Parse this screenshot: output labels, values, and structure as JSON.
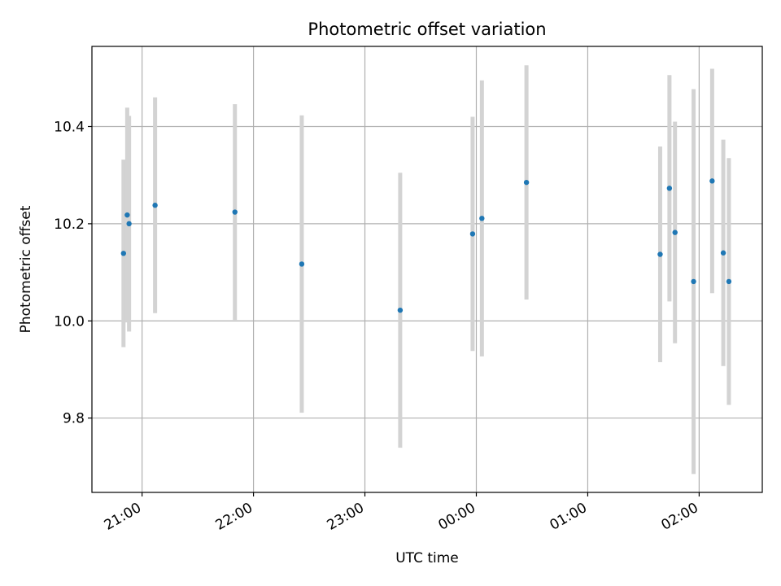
{
  "chart_data": {
    "type": "scatter",
    "title": "Photometric offset variation",
    "xlabel": "UTC time",
    "ylabel": "Photometric offset",
    "x_is_time": true,
    "xlim": [
      "20:33",
      "02:34"
    ],
    "ylim": [
      9.647,
      10.565
    ],
    "grid": true,
    "xticks": [
      "21:00",
      "22:00",
      "23:00",
      "00:00",
      "01:00",
      "02:00"
    ],
    "yticks": [
      9.8,
      10.0,
      10.2,
      10.4
    ],
    "ytick_labels": [
      "9.8",
      "10.0",
      "10.2",
      "10.4"
    ],
    "colors": {
      "point": "#1f77b4",
      "errorbar": "#d3d3d3",
      "grid": "#b0b0b0",
      "frame": "#000000"
    },
    "points": [
      {
        "x": "20:50",
        "y": 10.139,
        "yerr": 0.193
      },
      {
        "x": "20:52",
        "y": 10.218,
        "yerr": 0.221
      },
      {
        "x": "20:53",
        "y": 10.2,
        "yerr": 0.222
      },
      {
        "x": "21:07",
        "y": 10.238,
        "yerr": 0.222
      },
      {
        "x": "21:50",
        "y": 10.224,
        "yerr": 0.222
      },
      {
        "x": "22:26",
        "y": 10.117,
        "yerr": 0.306
      },
      {
        "x": "23:19",
        "y": 10.022,
        "yerr": 0.283
      },
      {
        "x": "23:58",
        "y": 10.179,
        "yerr": 0.241
      },
      {
        "x": "00:03",
        "y": 10.211,
        "yerr": 0.284
      },
      {
        "x": "00:27",
        "y": 10.285,
        "yerr": 0.241
      },
      {
        "x": "01:39",
        "y": 10.137,
        "yerr": 0.222
      },
      {
        "x": "01:44",
        "y": 10.273,
        "yerr": 0.233
      },
      {
        "x": "01:47",
        "y": 10.182,
        "yerr": 0.228
      },
      {
        "x": "01:57",
        "y": 10.081,
        "yerr": 0.396
      },
      {
        "x": "02:07",
        "y": 10.288,
        "yerr": 0.231
      },
      {
        "x": "02:13",
        "y": 10.14,
        "yerr": 0.233
      },
      {
        "x": "02:16",
        "y": 10.081,
        "yerr": 0.254
      }
    ]
  }
}
